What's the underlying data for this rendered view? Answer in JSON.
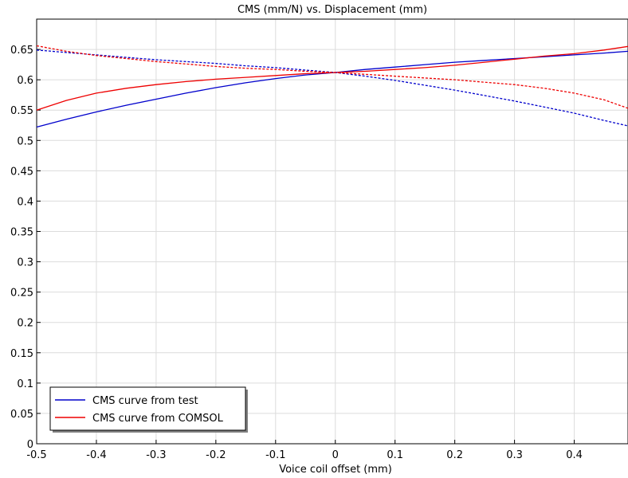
{
  "chart_data": {
    "type": "line",
    "title": "CMS (mm/N) vs. Displacement (mm)",
    "xlabel": "Voice coil offset (mm)",
    "ylabel": "",
    "xlim": [
      -0.5,
      0.49
    ],
    "ylim": [
      0,
      0.7
    ],
    "x_ticks": [
      -0.5,
      -0.4,
      -0.3,
      -0.2,
      -0.1,
      0,
      0.1,
      0.2,
      0.3,
      0.4
    ],
    "x_tick_labels": [
      "-0.5",
      "-0.4",
      "-0.3",
      "-0.2",
      "-0.1",
      "0",
      "0.1",
      "0.2",
      "0.3",
      "0.4"
    ],
    "y_ticks": [
      0,
      0.05,
      0.1,
      0.15,
      0.2,
      0.25,
      0.3,
      0.35,
      0.4,
      0.45,
      0.5,
      0.55,
      0.6,
      0.65
    ],
    "y_tick_labels": [
      "0",
      "0.05",
      "0.1",
      "0.15",
      "0.2",
      "0.25",
      "0.3",
      "0.35",
      "0.4",
      "0.45",
      "0.5",
      "0.55",
      "0.6",
      "0.65"
    ],
    "grid": true,
    "legend_position": "bottom-left",
    "x": [
      -0.5,
      -0.45,
      -0.4,
      -0.35,
      -0.3,
      -0.25,
      -0.2,
      -0.15,
      -0.1,
      -0.05,
      0,
      0.05,
      0.1,
      0.15,
      0.2,
      0.25,
      0.3,
      0.35,
      0.4,
      0.45,
      0.49
    ],
    "series": [
      {
        "name": "CMS curve from test",
        "color": "#0000cc",
        "style": "solid",
        "in_legend": true,
        "values": [
          0.522,
          0.535,
          0.547,
          0.558,
          0.568,
          0.578,
          0.587,
          0.595,
          0.602,
          0.608,
          0.612,
          0.617,
          0.621,
          0.625,
          0.629,
          0.632,
          0.635,
          0.638,
          0.641,
          0.644,
          0.647
        ]
      },
      {
        "name": "CMS curve from COMSOL",
        "color": "#ee0000",
        "style": "solid",
        "in_legend": true,
        "values": [
          0.55,
          0.566,
          0.578,
          0.586,
          0.592,
          0.597,
          0.601,
          0.604,
          0.607,
          0.61,
          0.612,
          0.614,
          0.617,
          0.62,
          0.624,
          0.629,
          0.634,
          0.639,
          0.643,
          0.649,
          0.655
        ]
      },
      {
        "name": "",
        "color": "#0000cc",
        "style": "dotted",
        "in_legend": false,
        "values": [
          0.649,
          0.645,
          0.641,
          0.637,
          0.633,
          0.63,
          0.627,
          0.623,
          0.62,
          0.616,
          0.612,
          0.606,
          0.599,
          0.591,
          0.583,
          0.574,
          0.565,
          0.555,
          0.545,
          0.533,
          0.524
        ]
      },
      {
        "name": "",
        "color": "#ee0000",
        "style": "dotted",
        "in_legend": false,
        "values": [
          0.656,
          0.647,
          0.64,
          0.635,
          0.63,
          0.626,
          0.622,
          0.619,
          0.617,
          0.614,
          0.612,
          0.609,
          0.606,
          0.603,
          0.6,
          0.596,
          0.592,
          0.586,
          0.578,
          0.567,
          0.553
        ]
      }
    ]
  }
}
